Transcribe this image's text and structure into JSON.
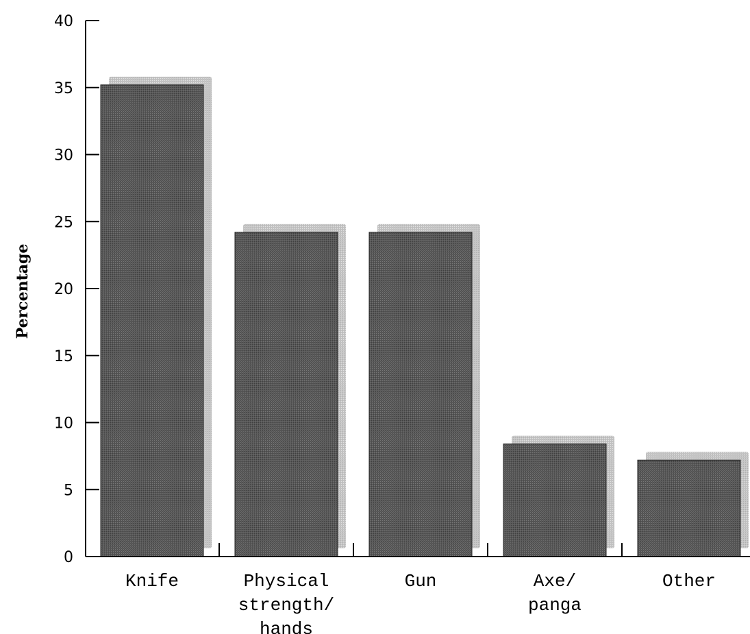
{
  "chart_data": {
    "type": "bar",
    "categories": [
      [
        "Knife"
      ],
      [
        "Physical",
        "strength/",
        "hands"
      ],
      [
        "Gun"
      ],
      [
        "Axe/",
        "panga"
      ],
      [
        "Other"
      ]
    ],
    "values": [
      35.2,
      24.2,
      24.2,
      8.4,
      7.2
    ],
    "title": "",
    "xlabel": "",
    "ylabel": "Percentage",
    "ylim": [
      0,
      40
    ],
    "yticks": [
      0,
      5,
      10,
      15,
      20,
      25,
      30,
      35,
      40
    ],
    "grid": false,
    "legend": "none",
    "colors": {
      "bar": "#555555",
      "bar_texture": "#6e6e6e",
      "shadow": "#c4c4c4",
      "shadow_texture": "#dadada",
      "axis": "#000000"
    }
  }
}
